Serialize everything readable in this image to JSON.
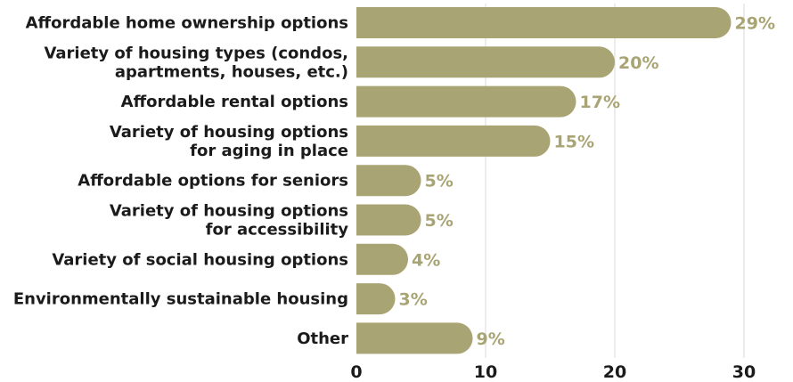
{
  "chart_data": {
    "type": "bar",
    "orientation": "horizontal",
    "categories": [
      [
        "Affordable home ownership options"
      ],
      [
        "Variety of housing types (condos,",
        "apartments, houses, etc.)"
      ],
      [
        "Affordable rental options"
      ],
      [
        "Variety of housing options",
        "for aging in place"
      ],
      [
        "Affordable options for seniors"
      ],
      [
        "Variety of housing options",
        "for accessibility"
      ],
      [
        "Variety of social housing options"
      ],
      [
        "Environmentally sustainable housing"
      ],
      [
        "Other"
      ]
    ],
    "values": [
      29,
      20,
      17,
      15,
      5,
      5,
      4,
      3,
      9
    ],
    "value_labels": [
      "29%",
      "20%",
      "17%",
      "15%",
      "5%",
      "5%",
      "4%",
      "3%",
      "9%"
    ],
    "xticks": [
      "0",
      "10",
      "20",
      "30"
    ],
    "xlim": [
      0,
      30
    ],
    "grid": true,
    "colors": {
      "bar": "#a9a474",
      "value_label": "#a9a474",
      "grid": "#d9d9d9"
    }
  }
}
